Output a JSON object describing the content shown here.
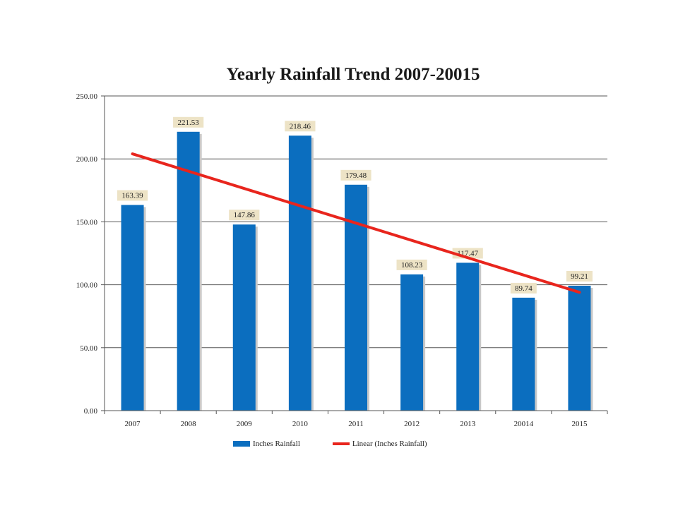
{
  "chart_data": {
    "type": "bar",
    "title": "Yearly Rainfall Trend 2007-20015",
    "categories": [
      "2007",
      "2008",
      "2009",
      "2010",
      "2011",
      "2012",
      "2013",
      "20014",
      "2015"
    ],
    "series": [
      {
        "name": "Inches Rainfall",
        "values": [
          163.39,
          221.53,
          147.86,
          218.46,
          179.48,
          108.23,
          117.47,
          89.74,
          99.21
        ],
        "labels": [
          "163.39",
          "221.53",
          "147.86",
          "218.46",
          "179.48",
          "108.23",
          "117.47",
          "89.74",
          "99.21"
        ]
      }
    ],
    "trendline": {
      "name": "Linear (Inches Rainfall)",
      "type": "linear",
      "start": 204,
      "end": 94
    },
    "ylim": [
      0,
      250
    ],
    "yticks": [
      "0.00",
      "50.00",
      "100.00",
      "150.00",
      "200.00",
      "250.00"
    ],
    "ytick_values": [
      0,
      50,
      100,
      150,
      200,
      250
    ],
    "xlabel": "",
    "ylabel": "",
    "grid": true,
    "legend_position": "bottom",
    "colors": {
      "bar": "#0b6ebf",
      "trendline": "#e8251d",
      "data_label_bg": "#ede3c6",
      "grid": "#555555"
    }
  }
}
